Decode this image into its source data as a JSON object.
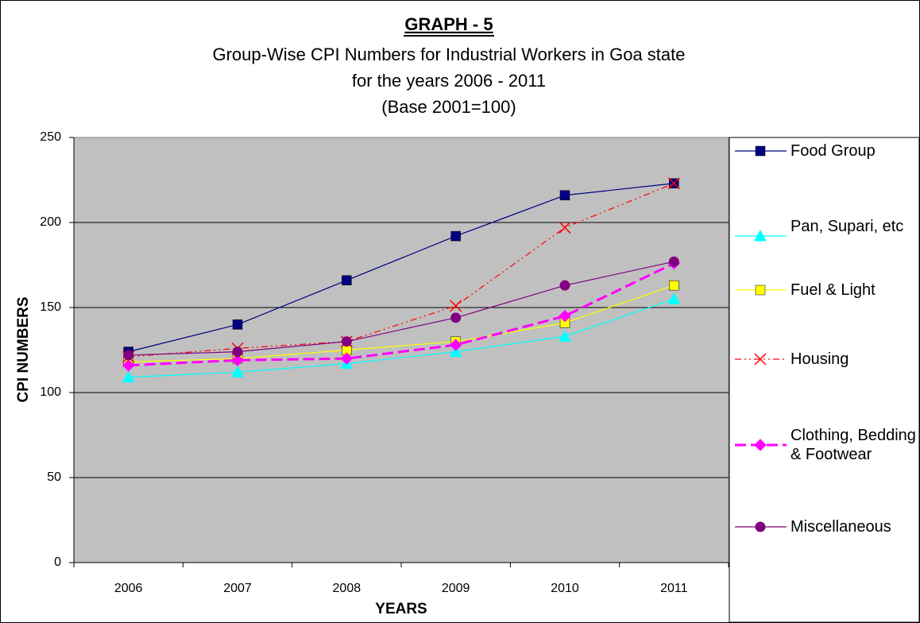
{
  "chart_data": {
    "type": "line",
    "title": "GRAPH - 5",
    "subtitle": [
      "Group-Wise CPI Numbers for Industrial Workers in Goa state",
      "for the years 2006 - 2011",
      "(Base 2001=100)"
    ],
    "x_label": "YEARS",
    "y_label": "CPI NUMBERS",
    "categories": [
      "2006",
      "2007",
      "2008",
      "2009",
      "2010",
      "2011"
    ],
    "ylim": [
      0,
      250
    ],
    "yticks": [
      0,
      50,
      100,
      150,
      200,
      250
    ],
    "grid": true,
    "series": [
      {
        "name": "Food Group",
        "color": "#000080",
        "marker": "square",
        "dash": "solid",
        "values": [
          124,
          140,
          166,
          192,
          216,
          223
        ]
      },
      {
        "name": "Pan, Supari, etc",
        "color": "#00ffff",
        "marker": "triangle",
        "dash": "solid",
        "values": [
          109,
          112,
          117,
          124,
          133,
          155
        ]
      },
      {
        "name": "Fuel & Light",
        "color": "#ffff00",
        "marker": "square",
        "dash": "solid",
        "values": [
          118,
          120,
          125,
          130,
          141,
          163
        ]
      },
      {
        "name": "Housing",
        "color": "#ff0000",
        "marker": "x",
        "dash": "dashdotdot",
        "values": [
          121,
          126,
          130,
          151,
          197,
          223
        ]
      },
      {
        "name": "Clothing, Bedding & Footwear",
        "color": "#ff00ff",
        "marker": "diamond",
        "dash": "dashed",
        "values": [
          116,
          119,
          120,
          128,
          145,
          176
        ]
      },
      {
        "name": "Miscellaneous",
        "color": "#800080",
        "marker": "circle",
        "dash": "solid",
        "values": [
          122,
          124,
          130,
          144,
          163,
          177
        ]
      }
    ]
  }
}
